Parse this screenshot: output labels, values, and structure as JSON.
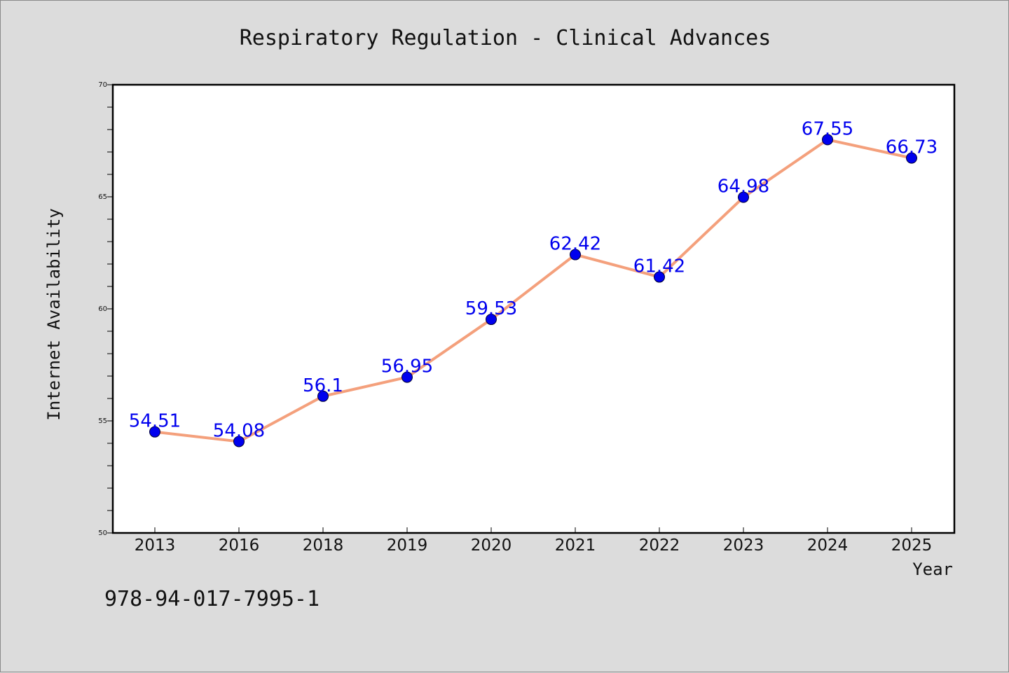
{
  "chart_data": {
    "type": "line",
    "title": "Respiratory Regulation - Clinical Advances",
    "xlabel": "Year",
    "ylabel": "Internet Availability",
    "categories": [
      "2013",
      "2016",
      "2018",
      "2019",
      "2020",
      "2021",
      "2022",
      "2023",
      "2024",
      "2025"
    ],
    "series": [
      {
        "values": [
          54.51,
          54.08,
          56.1,
          56.95,
          59.53,
          62.42,
          61.42,
          64.98,
          67.55,
          66.73
        ],
        "labels": [
          "54.51",
          "54.08",
          "56.1",
          "56.95",
          "59.53",
          "62.42",
          "61.42",
          "64.98",
          "67.55",
          "66.73"
        ]
      }
    ],
    "ylim": [
      50,
      70
    ],
    "yticks": [
      "50",
      "55",
      "60",
      "65",
      "70"
    ],
    "grid": false,
    "legend": "none",
    "line_color": "#f4a07c",
    "marker_color": "#0000ee",
    "label_color": "#0000ee"
  },
  "footer": {
    "code": "978-94-017-7995-1"
  }
}
